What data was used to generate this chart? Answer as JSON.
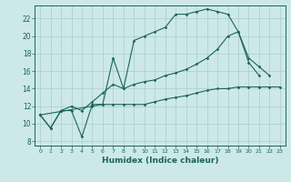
{
  "bg_color": "#cde8e8",
  "grid_color": "#aacccc",
  "line_color": "#1a6655",
  "xlabel": "Humidex (Indice chaleur)",
  "xlim": [
    -0.5,
    23.5
  ],
  "ylim": [
    7.5,
    23.5
  ],
  "yticks": [
    8,
    10,
    12,
    14,
    16,
    18,
    20,
    22
  ],
  "xticks": [
    0,
    1,
    2,
    3,
    4,
    5,
    6,
    7,
    8,
    9,
    10,
    11,
    12,
    13,
    14,
    15,
    16,
    17,
    18,
    19,
    20,
    21,
    22,
    23
  ],
  "line1_x": [
    0,
    1,
    2,
    3,
    4,
    5,
    6,
    7,
    8,
    9,
    10,
    11,
    12,
    13,
    14,
    15,
    16,
    17,
    18,
    19,
    20,
    21,
    22
  ],
  "line1_y": [
    11,
    9.5,
    11.5,
    11.5,
    8.5,
    12.2,
    12.2,
    17.5,
    14.0,
    19.5,
    20.0,
    20.5,
    21.0,
    22.5,
    22.5,
    22.8,
    23.1,
    22.8,
    22.5,
    20.5,
    17.0,
    15.5,
    null
  ],
  "line2_x": [
    0,
    1,
    2,
    3,
    4,
    5,
    6,
    7,
    8,
    9,
    10,
    11,
    12,
    13,
    14,
    15,
    16,
    17,
    18,
    19,
    20,
    21,
    22,
    23
  ],
  "line2_y": [
    11,
    9.5,
    11.5,
    12.0,
    11.5,
    12.5,
    13.5,
    14.5,
    14.0,
    14.5,
    14.8,
    15.0,
    15.5,
    15.8,
    16.2,
    16.8,
    17.5,
    18.5,
    20.0,
    20.5,
    17.5,
    16.5,
    15.5,
    null
  ],
  "line3_x": [
    0,
    5,
    6,
    7,
    8,
    9,
    10,
    11,
    12,
    13,
    14,
    15,
    16,
    17,
    18,
    19,
    20,
    21,
    22,
    23
  ],
  "line3_y": [
    11,
    12.0,
    12.2,
    12.2,
    12.2,
    12.2,
    12.2,
    12.5,
    12.8,
    13.0,
    13.2,
    13.5,
    13.8,
    14.0,
    14.0,
    14.2,
    14.2,
    14.2,
    14.2,
    14.2
  ]
}
